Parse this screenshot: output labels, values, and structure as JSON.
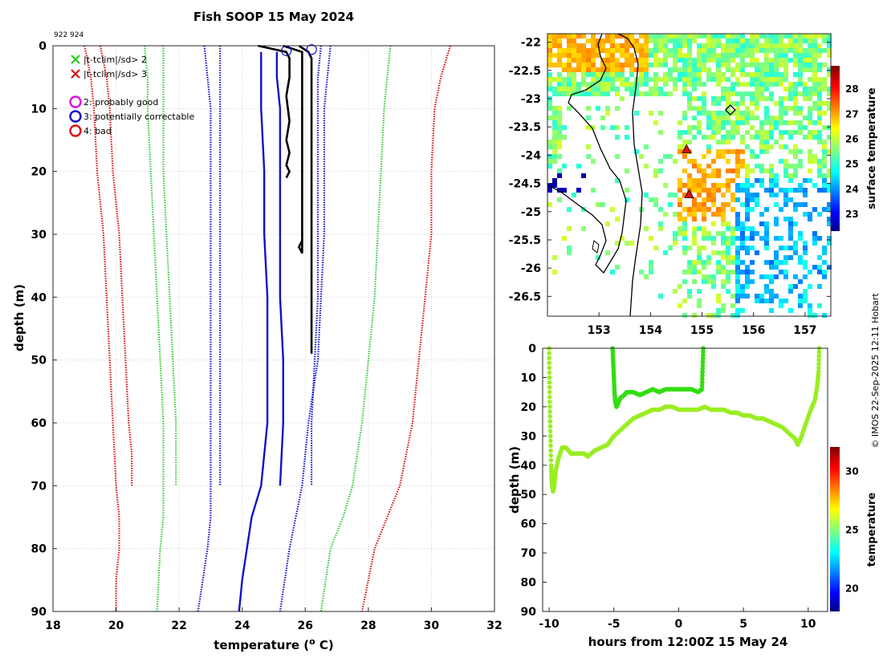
{
  "chart_data": [
    {
      "id": "profile",
      "type": "line",
      "title": "Fish SOOP 15 May 2024",
      "id_label": "922 924",
      "xlabel": "temperature (",
      "xlabel_sup": "o",
      "xlabel_tail": " C)",
      "ylabel": "depth (m)",
      "xlim": [
        18,
        32
      ],
      "ylim": [
        90,
        0
      ],
      "xticks": [
        "18",
        "20",
        "22",
        "24",
        "26",
        "28",
        "30",
        "32"
      ],
      "yticks": [
        "0",
        "10",
        "20",
        "30",
        "40",
        "50",
        "60",
        "70",
        "80",
        "90"
      ],
      "legend": {
        "items": [
          {
            "symbol": "x",
            "color": "#22cc22",
            "label": "|t-tclim|/sd> 2"
          },
          {
            "symbol": "x",
            "color": "#dd1111",
            "label": "|t-tclim|/sd> 3"
          },
          {
            "symbol": "o",
            "color": "#dd11dd",
            "label": "2: probably good"
          },
          {
            "symbol": "o",
            "color": "#1111cc",
            "label": "3: potentially correctable"
          },
          {
            "symbol": "o",
            "color": "#dd1111",
            "label": "4: bad"
          }
        ]
      },
      "series": [
        {
          "name": "clim -3sd a",
          "style": "dotted",
          "color": "#dd1111",
          "x": [
            19.0,
            19.2,
            19.3,
            19.4,
            19.6,
            19.7,
            19.8,
            19.9,
            20.0,
            20.1,
            20.1,
            20.0,
            20.0
          ],
          "y": [
            0,
            5,
            10,
            20,
            30,
            40,
            50,
            60,
            70,
            75,
            80,
            85,
            90
          ]
        },
        {
          "name": "clim -3sd b",
          "style": "dotted",
          "color": "#dd1111",
          "x": [
            19.5,
            19.7,
            19.8,
            19.9,
            20.1,
            20.2,
            20.3,
            20.4,
            20.5,
            20.5
          ],
          "y": [
            0,
            5,
            10,
            20,
            30,
            40,
            50,
            60,
            65,
            70
          ]
        },
        {
          "name": "clim -2sd a",
          "style": "dotted",
          "color": "#33cc33",
          "x": [
            20.9,
            21.0,
            21.0,
            21.1,
            21.2,
            21.3,
            21.4,
            21.5,
            21.5,
            21.5,
            21.4,
            21.3
          ],
          "y": [
            0,
            5,
            10,
            20,
            30,
            40,
            50,
            60,
            70,
            75,
            80,
            90
          ]
        },
        {
          "name": "clim -2sd b",
          "style": "dotted",
          "color": "#33cc33",
          "x": [
            21.5,
            21.5,
            21.5,
            21.5,
            21.6,
            21.7,
            21.8,
            21.9,
            21.9
          ],
          "y": [
            0,
            5,
            10,
            20,
            30,
            40,
            50,
            60,
            70
          ]
        },
        {
          "name": "clim -1sd a",
          "style": "dotted",
          "color": "#1111cc",
          "x": [
            22.8,
            22.9,
            23.0,
            23.0,
            23.0,
            23.0,
            23.0,
            23.0,
            23.0,
            23.0,
            22.9,
            22.6
          ],
          "y": [
            0,
            5,
            10,
            20,
            30,
            40,
            50,
            60,
            70,
            75,
            80,
            90
          ]
        },
        {
          "name": "clim -1sd b",
          "style": "dotted",
          "color": "#1111cc",
          "x": [
            23.3,
            23.3,
            23.3,
            23.3,
            23.3,
            23.3,
            23.3,
            23.3,
            23.3
          ],
          "y": [
            0,
            5,
            10,
            20,
            30,
            40,
            50,
            60,
            70
          ]
        },
        {
          "name": "climatology mean a",
          "style": "solid",
          "color": "#1111cc",
          "x": [
            24.6,
            24.6,
            24.6,
            24.7,
            24.7,
            24.8,
            24.8,
            24.8,
            24.6,
            24.3,
            24.0,
            23.9
          ],
          "y": [
            1,
            5,
            10,
            20,
            30,
            40,
            50,
            60,
            70,
            75,
            85,
            90
          ]
        },
        {
          "name": "climatology mean b",
          "style": "solid",
          "color": "#1111cc",
          "x": [
            25.1,
            25.1,
            25.2,
            25.2,
            25.2,
            25.2,
            25.3,
            25.3,
            25.2
          ],
          "y": [
            1,
            5,
            10,
            20,
            30,
            40,
            50,
            60,
            70
          ]
        },
        {
          "name": "clim +1sd a",
          "style": "dotted",
          "color": "#1111cc",
          "x": [
            26.8,
            26.7,
            26.6,
            26.6,
            26.6,
            26.5,
            26.4,
            26.1,
            25.9,
            25.7,
            25.5,
            25.2
          ],
          "y": [
            0,
            5,
            10,
            20,
            30,
            40,
            50,
            60,
            70,
            75,
            80,
            90
          ]
        },
        {
          "name": "clim +1sd b",
          "style": "dotted",
          "color": "#1111cc",
          "x": [
            26.5,
            26.4,
            26.4,
            26.4,
            26.4,
            26.4,
            26.3,
            26.2,
            26.2
          ],
          "y": [
            0,
            5,
            10,
            20,
            30,
            40,
            50,
            60,
            70
          ]
        },
        {
          "name": "clim +2sd",
          "style": "dotted",
          "color": "#33cc33",
          "x": [
            28.7,
            28.6,
            28.5,
            28.4,
            28.3,
            28.2,
            28.0,
            27.8,
            27.5,
            27.2,
            26.8,
            26.5
          ],
          "y": [
            0,
            5,
            10,
            20,
            30,
            40,
            50,
            60,
            70,
            75,
            80,
            90
          ]
        },
        {
          "name": "clim +3sd",
          "style": "dotted",
          "color": "#dd1111",
          "x": [
            30.6,
            30.3,
            30.1,
            30.0,
            30.0,
            29.8,
            29.6,
            29.4,
            29.0,
            28.6,
            28.2,
            27.8
          ],
          "y": [
            0,
            5,
            10,
            20,
            30,
            40,
            50,
            60,
            70,
            75,
            80,
            90
          ]
        },
        {
          "name": "observed profile 1",
          "style": "solid",
          "color": "#000000",
          "x": [
            24.5,
            25.4,
            25.5,
            25.5,
            25.4,
            25.5,
            25.4,
            25.5,
            25.4,
            25.5,
            25.4
          ],
          "y": [
            0,
            1,
            2,
            5,
            8,
            12,
            15,
            17,
            19,
            20,
            21
          ]
        },
        {
          "name": "observed profile 2",
          "style": "solid",
          "color": "#000000",
          "x": [
            25.3,
            25.9,
            25.9,
            25.9,
            25.9,
            25.9,
            25.9,
            25.9,
            25.9,
            25.9,
            25.9,
            25.9,
            25.9,
            25.9,
            25.9,
            25.9,
            25.8,
            25.9,
            25.9,
            25.9
          ],
          "y": [
            0,
            1,
            2,
            5,
            10,
            15,
            20,
            22,
            24,
            25,
            26,
            27,
            28,
            29,
            30,
            31,
            32,
            33,
            24,
            26
          ]
        },
        {
          "name": "observed profile 3",
          "style": "solid",
          "color": "#000000",
          "x": [
            25.8,
            26.1,
            26.2,
            26.2,
            26.2,
            26.2,
            26.2,
            26.2,
            26.2
          ],
          "y": [
            0,
            1,
            2,
            5,
            10,
            20,
            30,
            40,
            49
          ]
        }
      ],
      "markers": [
        {
          "x": 25.4,
          "y": 0.8,
          "color": "#1111cc",
          "flag": "3"
        },
        {
          "x": 26.2,
          "y": 0.6,
          "color": "#1111cc",
          "flag": "3"
        }
      ]
    },
    {
      "id": "map",
      "type": "heatmap",
      "colorbar_label": "surface temperature",
      "colorbar_range": [
        22.3,
        28.9
      ],
      "colorbar_ticks": [
        "23",
        "24",
        "25",
        "26",
        "27",
        "28"
      ],
      "xlim": [
        152.0,
        157.5
      ],
      "ylim": [
        -26.85,
        -21.85
      ],
      "xticks": [
        "153",
        "154",
        "155",
        "156",
        "157"
      ],
      "yticks": [
        "-22",
        "-22.5",
        "-23",
        "-23.5",
        "-24",
        "-24.5",
        "-25",
        "-25.5",
        "-26",
        "-26.5"
      ],
      "stations": [
        {
          "lon": 154.7,
          "lat": -23.9,
          "marker": "triangle",
          "color": "#dd1111"
        },
        {
          "lon": 154.75,
          "lat": -24.7,
          "marker": "triangle",
          "color": "#dd1111"
        },
        {
          "lon": 155.55,
          "lat": -23.2,
          "marker": "diamond",
          "color": "#000000"
        }
      ]
    },
    {
      "id": "depth_time",
      "type": "scatter",
      "xlabel": "hours from 12:00Z 15 May 24",
      "ylabel": "depth (m)",
      "colorbar_label": "temperature",
      "colorbar_range": [
        18,
        32
      ],
      "colorbar_ticks": [
        "20",
        "25",
        "30"
      ],
      "xlim": [
        -10.5,
        11.5
      ],
      "ylim": [
        90,
        0
      ],
      "xticks": [
        "-10",
        "-5",
        "0",
        "5",
        "10"
      ],
      "yticks": [
        "0",
        "10",
        "20",
        "30",
        "40",
        "50",
        "60",
        "70",
        "80",
        "90"
      ],
      "series": [
        {
          "name": "deployment A",
          "color": "#99ee22",
          "x": [
            -10.0,
            -9.98,
            -9.95,
            -9.9,
            -9.85,
            -9.8,
            -9.7,
            -9.6,
            -9.5,
            -9.3,
            -9.0,
            -8.7,
            -8.3,
            -7.8,
            -7.3,
            -7.0,
            -6.5,
            -6.0,
            -5.5,
            -5.0,
            -4.5,
            -4.0,
            -3.5,
            -3.0,
            -2.5,
            -2.0,
            -1.5,
            -1.0,
            -0.5,
            0.0,
            0.5,
            1.0,
            1.5,
            2.0,
            2.5,
            3.0,
            3.5,
            4.0,
            4.5,
            5.0,
            5.5,
            6.0,
            6.5,
            7.0,
            7.5,
            8.0,
            8.5,
            9.0,
            9.2,
            9.5,
            9.8,
            10.2,
            10.5,
            10.7,
            10.8,
            10.85
          ],
          "y": [
            0,
            10,
            20,
            30,
            40,
            46,
            49,
            47,
            42,
            38,
            34,
            34,
            36,
            36,
            36,
            37,
            35,
            34,
            33,
            30,
            28,
            26,
            24,
            23,
            22,
            21,
            21,
            20,
            20,
            21,
            21,
            21,
            21,
            20,
            21,
            21,
            21,
            22,
            22,
            23,
            23,
            24,
            24,
            25,
            26,
            27,
            29,
            31,
            33,
            30,
            26,
            21,
            18,
            13,
            8,
            0
          ]
        },
        {
          "name": "deployment B",
          "color": "#33dd11",
          "x": [
            -5.1,
            -5.05,
            -5.0,
            -4.95,
            -4.9,
            -4.8,
            -4.7,
            -4.5,
            -4.2,
            -4.0,
            -3.5,
            -3.0,
            -2.5,
            -2.0,
            -1.5,
            -1.0,
            -0.5,
            0.0,
            0.5,
            1.0,
            1.5,
            1.8,
            1.85,
            1.9
          ],
          "y": [
            0,
            5,
            10,
            15,
            18,
            20,
            19,
            17,
            16,
            15,
            15,
            16,
            15,
            14,
            15,
            14,
            14,
            14,
            14,
            14,
            15,
            14,
            7,
            0
          ]
        }
      ]
    }
  ],
  "credit": "© IMOS 22-Sep-2025 12:11 Hobart"
}
